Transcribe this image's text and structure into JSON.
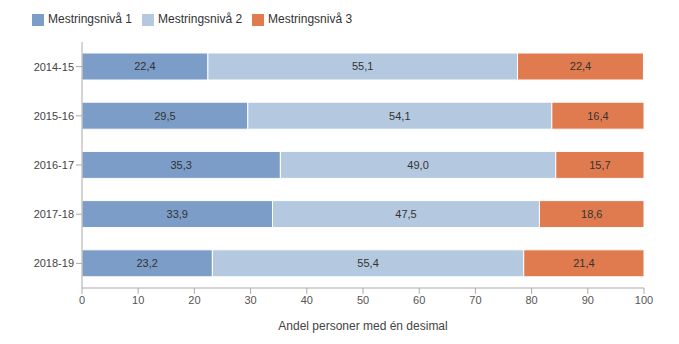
{
  "chart_data": {
    "type": "bar",
    "orientation": "horizontal",
    "stacked": true,
    "data_labels": true,
    "grid": false,
    "legend": "top-left",
    "x_label": "Andel personer med én desimal",
    "categories": [
      "2014-15",
      "2015-16",
      "2016-17",
      "2017-18",
      "2018-19"
    ],
    "xlim": [
      0,
      100
    ],
    "xticks": [
      0,
      10,
      20,
      30,
      40,
      50,
      60,
      70,
      80,
      90,
      100
    ],
    "series": [
      {
        "name": "Mestringsnivå 1",
        "color": "#7b9dc7",
        "values": [
          22.4,
          29.5,
          35.3,
          33.9,
          23.2
        ],
        "value_labels": [
          "22,4",
          "29,5",
          "35,3",
          "33,9",
          "23,2"
        ]
      },
      {
        "name": "Mestringsnivå 2",
        "color": "#b4c9df",
        "values": [
          55.1,
          54.1,
          49.0,
          47.5,
          55.4
        ],
        "value_labels": [
          "55,1",
          "54,1",
          "49,0",
          "47,5",
          "55,4"
        ]
      },
      {
        "name": "Mestringsnivå 3",
        "color": "#e07b50",
        "values": [
          22.4,
          16.4,
          15.7,
          18.6,
          21.4
        ],
        "value_labels": [
          "22,4",
          "16,4",
          "15,7",
          "18,6",
          "21,4"
        ]
      }
    ]
  }
}
